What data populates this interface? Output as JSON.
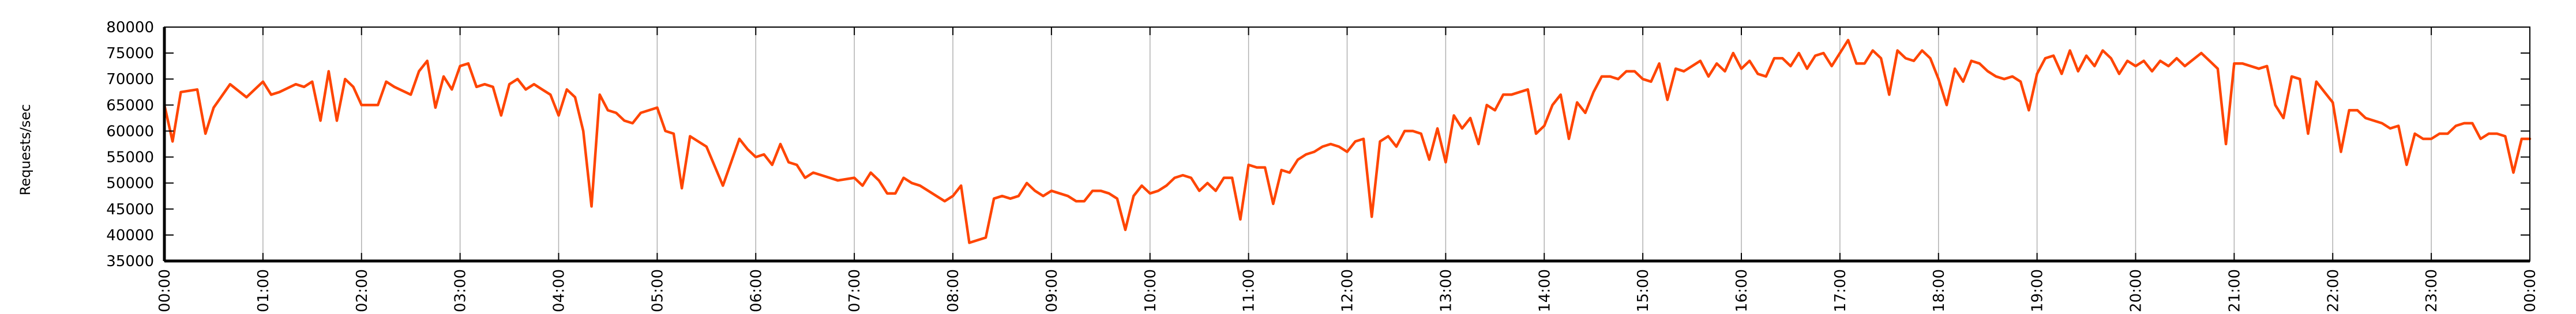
{
  "chart_data": {
    "type": "line",
    "title": "",
    "xlabel": "",
    "ylabel": "Requests/sec",
    "ylim": [
      35000,
      80000
    ],
    "yticks": [
      35000,
      40000,
      45000,
      50000,
      55000,
      60000,
      65000,
      70000,
      75000,
      80000
    ],
    "ytick_labels": [
      "35000",
      "40000",
      "45000",
      "50000",
      "55000",
      "60000",
      "65000",
      "70000",
      "75000",
      "80000"
    ],
    "xlim": [
      0,
      1440
    ],
    "xticks": [
      0,
      60,
      120,
      180,
      240,
      300,
      360,
      420,
      480,
      540,
      600,
      660,
      720,
      780,
      840,
      900,
      960,
      1020,
      1080,
      1140,
      1200,
      1260,
      1320,
      1380,
      1440
    ],
    "xtick_labels": [
      "00:00",
      "01:00",
      "02:00",
      "03:00",
      "04:00",
      "05:00",
      "06:00",
      "07:00",
      "08:00",
      "09:00",
      "10:00",
      "11:00",
      "12:00",
      "13:00",
      "14:00",
      "15:00",
      "16:00",
      "17:00",
      "18:00",
      "19:00",
      "20:00",
      "21:00",
      "22:00",
      "23:00",
      "00:00"
    ],
    "grid": "vertical",
    "line_color": "#ff4500",
    "series": [
      {
        "name": "",
        "x": [
          0,
          5,
          10,
          20,
          25,
          30,
          40,
          50,
          55,
          60,
          65,
          70,
          80,
          85,
          90,
          95,
          100,
          105,
          110,
          115,
          120,
          125,
          130,
          135,
          140,
          150,
          155,
          160,
          165,
          170,
          175,
          180,
          185,
          190,
          195,
          200,
          205,
          210,
          215,
          220,
          225,
          230,
          235,
          240,
          245,
          250,
          255,
          260,
          265,
          270,
          275,
          280,
          285,
          290,
          295,
          300,
          305,
          310,
          315,
          320,
          330,
          340,
          350,
          355,
          360,
          365,
          370,
          375,
          380,
          385,
          390,
          395,
          400,
          405,
          410,
          420,
          425,
          430,
          435,
          440,
          445,
          450,
          455,
          460,
          465,
          470,
          475,
          480,
          485,
          490,
          495,
          500,
          505,
          510,
          515,
          520,
          525,
          530,
          535,
          540,
          550,
          555,
          560,
          565,
          570,
          575,
          580,
          585,
          590,
          595,
          600,
          605,
          610,
          615,
          620,
          625,
          630,
          635,
          640,
          645,
          650,
          655,
          660,
          665,
          670,
          675,
          680,
          685,
          690,
          695,
          700,
          705,
          710,
          715,
          720,
          725,
          730,
          735,
          740,
          745,
          750,
          755,
          760,
          765,
          770,
          775,
          780,
          785,
          790,
          795,
          800,
          805,
          810,
          815,
          820,
          825,
          830,
          835,
          840,
          845,
          850,
          855,
          860,
          865,
          870,
          875,
          880,
          885,
          890,
          895,
          900,
          905,
          910,
          915,
          920,
          925,
          930,
          935,
          940,
          945,
          950,
          955,
          960,
          965,
          970,
          975,
          980,
          985,
          990,
          995,
          1000,
          1005,
          1010,
          1015,
          1020,
          1025,
          1030,
          1035,
          1040,
          1045,
          1050,
          1055,
          1060,
          1065,
          1070,
          1075,
          1080,
          1085,
          1090,
          1095,
          1100,
          1105,
          1110,
          1115,
          1120,
          1125,
          1130,
          1135,
          1140,
          1145,
          1150,
          1155,
          1160,
          1165,
          1170,
          1175,
          1180,
          1185,
          1190,
          1195,
          1200,
          1205,
          1210,
          1215,
          1220,
          1225,
          1230,
          1240,
          1245,
          1250,
          1255,
          1260,
          1265,
          1270,
          1275,
          1280,
          1285,
          1290,
          1295,
          1300,
          1305,
          1310,
          1315,
          1320,
          1325,
          1330,
          1335,
          1340,
          1345,
          1350,
          1355,
          1360,
          1365,
          1370,
          1375,
          1380,
          1385,
          1390,
          1395,
          1400,
          1405,
          1410,
          1415,
          1420,
          1425,
          1430,
          1435,
          1440
        ],
        "values": [
          65000,
          58000,
          67500,
          68000,
          59500,
          64500,
          69000,
          66500,
          68000,
          69500,
          67000,
          67500,
          69000,
          68500,
          69500,
          62000,
          71500,
          62000,
          70000,
          68500,
          65000,
          65000,
          65000,
          69500,
          68500,
          67000,
          71500,
          73500,
          64500,
          70500,
          68000,
          72500,
          73000,
          68500,
          69000,
          68500,
          63000,
          69000,
          70000,
          68000,
          69000,
          68000,
          67000,
          63000,
          68000,
          66500,
          60000,
          45500,
          67000,
          64000,
          63500,
          62000,
          61500,
          63500,
          64000,
          64500,
          60000,
          59500,
          49000,
          59000,
          57000,
          49500,
          58500,
          56500,
          55000,
          55500,
          53500,
          57500,
          54000,
          53500,
          51000,
          52000,
          51500,
          51000,
          50500,
          51000,
          49500,
          52000,
          50500,
          48000,
          48000,
          51000,
          50000,
          49500,
          48500,
          47500,
          46500,
          47500,
          49500,
          38500,
          39000,
          39500,
          47000,
          47500,
          47000,
          47500,
          50000,
          48500,
          47500,
          48500,
          47500,
          46500,
          46500,
          48500,
          48500,
          48000,
          47000,
          41000,
          47500,
          49500,
          48000,
          48500,
          49500,
          51000,
          51500,
          51000,
          48500,
          50000,
          48500,
          51000,
          51000,
          43000,
          53500,
          53000,
          53000,
          46000,
          52500,
          52000,
          54500,
          55500,
          56000,
          57000,
          57500,
          57000,
          56000,
          58000,
          58500,
          43500,
          58000,
          59000,
          57000,
          60000,
          60000,
          59500,
          54500,
          60500,
          54000,
          63000,
          60500,
          62500,
          57500,
          65000,
          64000,
          67000,
          67000,
          67500,
          68000,
          59500,
          61000,
          65000,
          67000,
          58500,
          65500,
          63500,
          67500,
          70500,
          70500,
          70000,
          71500,
          71500,
          70000,
          69500,
          73000,
          66000,
          72000,
          71500,
          72500,
          73500,
          70500,
          73000,
          71500,
          75000,
          72000,
          73500,
          71000,
          70500,
          74000,
          74000,
          72500,
          75000,
          72000,
          74500,
          75000,
          72500,
          75000,
          77500,
          73000,
          73000,
          75500,
          74000,
          67000,
          75500,
          74000,
          73500,
          75500,
          74000,
          70000,
          65000,
          72000,
          69500,
          73500,
          73000,
          71500,
          70500,
          70000,
          70500,
          69500,
          64000,
          71000,
          74000,
          74500,
          71000,
          75500,
          71500,
          74500,
          72500,
          75500,
          74000,
          71000,
          73500,
          72500,
          73500,
          71500,
          73500,
          72500,
          74000,
          72500,
          75000,
          73500,
          72000,
          57500,
          73000,
          73000,
          72500,
          72000,
          72500,
          65000,
          62500,
          70500,
          70000,
          59500,
          69500,
          67500,
          65500,
          56000,
          64000,
          64000,
          62500,
          62000,
          61500,
          60500,
          61000,
          53500,
          59500,
          58500,
          58500,
          59500,
          59500,
          61000,
          61500,
          61500,
          58500,
          59500,
          59500,
          59000,
          52000,
          58500,
          58500
        ]
      }
    ]
  }
}
